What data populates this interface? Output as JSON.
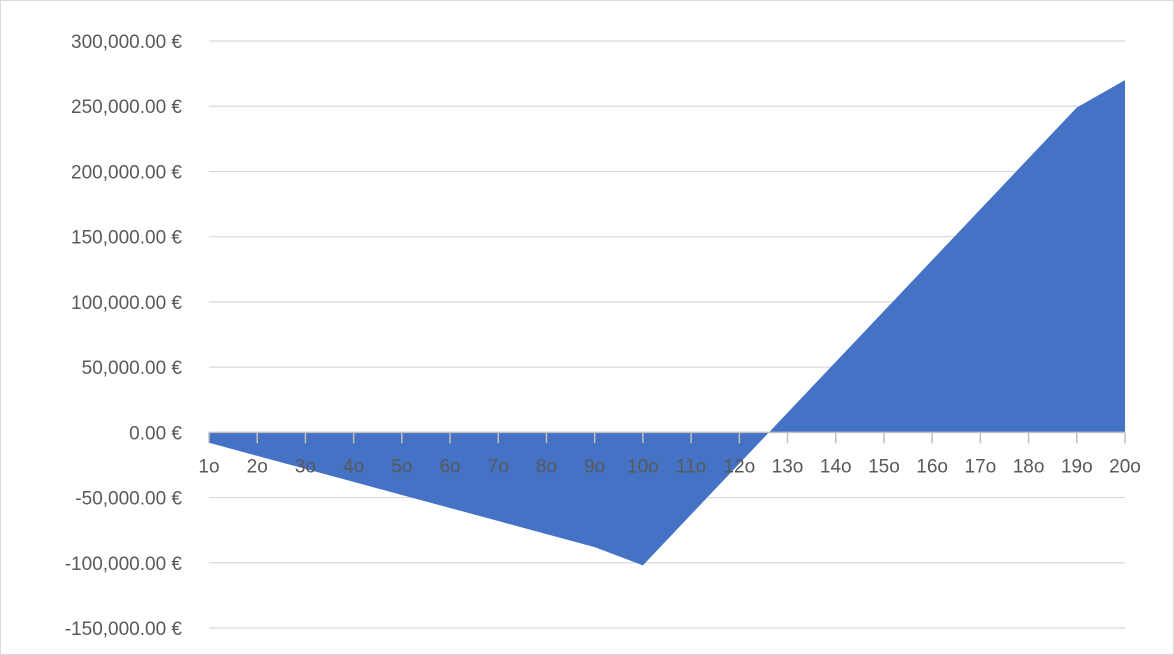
{
  "chart_data": {
    "type": "area",
    "categories": [
      "1o",
      "2o",
      "3o",
      "4o",
      "5o",
      "6o",
      "7o",
      "8o",
      "9o",
      "10o",
      "11o",
      "12o",
      "13o",
      "14o",
      "15o",
      "16o",
      "17o",
      "18o",
      "19o",
      "20o"
    ],
    "series": [
      {
        "values": [
          -8000,
          -18000,
          -28000,
          -38000,
          -48000,
          -58000,
          -68000,
          -78000,
          -88000,
          -102000,
          -63000,
          -24000,
          15000,
          54000,
          93000,
          132000,
          171000,
          210000,
          249000,
          270000
        ]
      }
    ],
    "yticks": [
      {
        "value": 300000,
        "label": "300,000.00 €"
      },
      {
        "value": 250000,
        "label": "250,000.00 €"
      },
      {
        "value": 200000,
        "label": "200,000.00 €"
      },
      {
        "value": 150000,
        "label": "150,000.00 €"
      },
      {
        "value": 100000,
        "label": "100,000.00 €"
      },
      {
        "value": 50000,
        "label": "50,000.00 €"
      },
      {
        "value": 0,
        "label": "0.00 €"
      },
      {
        "value": -50000,
        "label": "-50,000.00 €"
      },
      {
        "value": -100000,
        "label": "-100,000.00 €"
      },
      {
        "value": -150000,
        "label": "-150,000.00 €"
      }
    ],
    "ylim": [
      -150000,
      300000
    ],
    "grid": true,
    "legend": "none",
    "title": "",
    "xlabel": "",
    "ylabel": "",
    "colors": {
      "fill": "#4472c4",
      "grid": "#d9d9d9",
      "axis": "#bfbfbf",
      "text": "#595959"
    }
  }
}
